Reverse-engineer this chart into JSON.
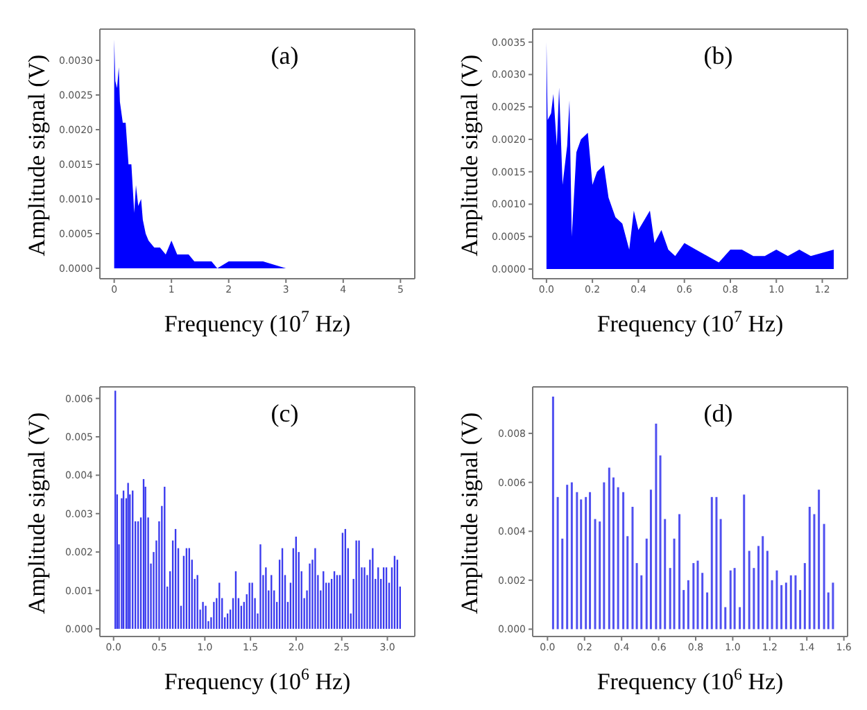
{
  "chart_data": [
    {
      "type": "area",
      "xlabel": "Frequency (10$^{7}$ Hz)",
      "ylabel": "Amplitude signal (V)",
      "annotations": [
        "(a)"
      ],
      "series": [
        {
          "color": "#0000ff",
          "x": [
            0,
            0.02,
            0.05,
            0.08,
            0.1,
            0.15,
            0.2,
            0.25,
            0.3,
            0.35,
            0.38,
            0.42,
            0.47,
            0.5,
            0.55,
            0.6,
            0.7,
            0.8,
            0.9,
            1.0,
            1.1,
            1.2,
            1.3,
            1.4,
            1.5,
            1.7,
            1.8,
            2.0,
            2.3,
            2.6,
            3.0,
            4.0,
            5.0
          ],
          "values": [
            0.0033,
            0.0027,
            0.0026,
            0.0029,
            0.0024,
            0.0021,
            0.0021,
            0.0015,
            0.0015,
            0.0008,
            0.0012,
            0.0009,
            0.001,
            0.0007,
            0.0005,
            0.0004,
            0.0003,
            0.0003,
            0.0002,
            0.0004,
            0.0002,
            0.0002,
            0.0002,
            0.0001,
            0.0001,
            0.0001,
            0.0,
            0.0001,
            0.0001,
            0.0001,
            0.0,
            0.0,
            0.0
          ]
        }
      ],
      "xlim": [
        -0.25,
        5.25
      ],
      "xticks": [
        0,
        1,
        2,
        3,
        4,
        5
      ],
      "ylim": [
        -0.00015,
        0.00345
      ],
      "yticks": [
        {
          "value": 0,
          "label": "0.0000"
        },
        {
          "value": 0.0005,
          "label": "0.0005"
        },
        {
          "value": 0.001,
          "label": "0.0010"
        },
        {
          "value": 0.0015,
          "label": "0.0015"
        },
        {
          "value": 0.002,
          "label": "0.0020"
        },
        {
          "value": 0.0025,
          "label": "0.0025"
        },
        {
          "value": 0.003,
          "label": "0.0030"
        }
      ]
    },
    {
      "type": "area",
      "xlabel": "Frequency (10$^{7}$ Hz)",
      "ylabel": "Amplitude signal (V)",
      "annotations": [
        "(b)"
      ],
      "series": [
        {
          "color": "#0000ff",
          "x": [
            0,
            0.005,
            0.02,
            0.03,
            0.045,
            0.055,
            0.07,
            0.09,
            0.1,
            0.11,
            0.13,
            0.15,
            0.18,
            0.2,
            0.22,
            0.25,
            0.27,
            0.3,
            0.33,
            0.36,
            0.38,
            0.4,
            0.45,
            0.47,
            0.5,
            0.53,
            0.56,
            0.6,
            0.65,
            0.7,
            0.75,
            0.8,
            0.85,
            0.9,
            0.95,
            1.0,
            1.05,
            1.1,
            1.15,
            1.25
          ],
          "values": [
            0.0035,
            0.0023,
            0.0024,
            0.0027,
            0.0019,
            0.0028,
            0.0013,
            0.0019,
            0.0026,
            0.0005,
            0.0018,
            0.002,
            0.0021,
            0.0013,
            0.0015,
            0.0016,
            0.0011,
            0.0008,
            0.0007,
            0.0003,
            0.0009,
            0.0006,
            0.0009,
            0.0004,
            0.0006,
            0.0003,
            0.0002,
            0.0004,
            0.0003,
            0.0002,
            0.0001,
            0.0003,
            0.0003,
            0.0002,
            0.0002,
            0.0003,
            0.0002,
            0.0003,
            0.0002,
            0.0003
          ]
        }
      ],
      "xlim": [
        -0.06,
        1.31
      ],
      "xticks": [
        {
          "value": 0,
          "label": "0.0"
        },
        {
          "value": 0.2,
          "label": "0.2"
        },
        {
          "value": 0.4,
          "label": "0.4"
        },
        {
          "value": 0.6,
          "label": "0.6"
        },
        {
          "value": 0.8,
          "label": "0.8"
        },
        {
          "value": 1.0,
          "label": "1.0"
        },
        {
          "value": 1.2,
          "label": "1.2"
        }
      ],
      "ylim": [
        -0.00015,
        0.0037
      ],
      "yticks": [
        {
          "value": 0,
          "label": "0.0000"
        },
        {
          "value": 0.0005,
          "label": "0.0005"
        },
        {
          "value": 0.001,
          "label": "0.0010"
        },
        {
          "value": 0.0015,
          "label": "0.0015"
        },
        {
          "value": 0.002,
          "label": "0.0020"
        },
        {
          "value": 0.0025,
          "label": "0.0025"
        },
        {
          "value": 0.003,
          "label": "0.0030"
        },
        {
          "value": 0.0035,
          "label": "0.0035"
        }
      ]
    },
    {
      "type": "bar",
      "xlabel": "Frequency (10$^{6}$ Hz)",
      "ylabel": "Amplitude signal (V)",
      "annotations": [
        "(c)"
      ],
      "series": [
        {
          "color": "#3a3aee",
          "x": [
            0.02,
            0.04,
            0.06,
            0.09,
            0.11,
            0.14,
            0.16,
            0.18,
            0.21,
            0.24,
            0.27,
            0.3,
            0.33,
            0.35,
            0.38,
            0.41,
            0.44,
            0.47,
            0.5,
            0.53,
            0.56,
            0.59,
            0.62,
            0.65,
            0.68,
            0.71,
            0.74,
            0.77,
            0.8,
            0.83,
            0.86,
            0.89,
            0.92,
            0.95,
            0.98,
            1.01,
            1.04,
            1.07,
            1.1,
            1.13,
            1.16,
            1.19,
            1.22,
            1.25,
            1.28,
            1.31,
            1.34,
            1.37,
            1.4,
            1.43,
            1.46,
            1.49,
            1.52,
            1.55,
            1.58,
            1.61,
            1.64,
            1.67,
            1.7,
            1.73,
            1.76,
            1.79,
            1.82,
            1.85,
            1.88,
            1.91,
            1.94,
            1.97,
            2.0,
            2.03,
            2.06,
            2.09,
            2.12,
            2.15,
            2.18,
            2.21,
            2.24,
            2.27,
            2.3,
            2.33,
            2.36,
            2.39,
            2.42,
            2.45,
            2.48,
            2.51,
            2.54,
            2.57,
            2.6,
            2.63,
            2.66,
            2.69,
            2.72,
            2.75,
            2.78,
            2.81,
            2.84,
            2.87,
            2.9,
            2.93,
            2.96,
            2.99,
            3.02,
            3.05,
            3.08,
            3.11,
            3.14
          ],
          "values": [
            0.0062,
            0.0035,
            0.0022,
            0.0034,
            0.0036,
            0.0034,
            0.0038,
            0.0035,
            0.0036,
            0.0028,
            0.0028,
            0.0029,
            0.0039,
            0.0037,
            0.0029,
            0.0017,
            0.002,
            0.0023,
            0.0028,
            0.0032,
            0.0037,
            0.0011,
            0.0015,
            0.0023,
            0.0026,
            0.0021,
            0.0006,
            0.0019,
            0.0021,
            0.0021,
            0.0018,
            0.0013,
            0.0014,
            0.0005,
            0.0007,
            0.0006,
            0.0002,
            0.0003,
            0.0007,
            0.0008,
            0.0012,
            0.0008,
            0.0003,
            0.0004,
            0.0005,
            0.0008,
            0.0015,
            0.0008,
            0.0006,
            0.0007,
            0.0009,
            0.0012,
            0.0012,
            0.0008,
            0.0004,
            0.0022,
            0.0014,
            0.0016,
            0.001,
            0.0014,
            0.001,
            0.0007,
            0.0018,
            0.0021,
            0.0014,
            0.0007,
            0.0012,
            0.0021,
            0.0024,
            0.002,
            0.0015,
            0.0008,
            0.001,
            0.0017,
            0.0018,
            0.0021,
            0.0014,
            0.001,
            0.0015,
            0.0012,
            0.0012,
            0.0013,
            0.0015,
            0.0014,
            0.0014,
            0.0025,
            0.0026,
            0.0021,
            0.0004,
            0.0013,
            0.0023,
            0.0023,
            0.0016,
            0.0016,
            0.0014,
            0.0018,
            0.0021,
            0.0013,
            0.0016,
            0.0013,
            0.0016,
            0.0016,
            0.0012,
            0.0016,
            0.0019,
            0.0018,
            0.0011
          ]
        }
      ],
      "xlim": [
        -0.15,
        3.3
      ],
      "xticks": [
        {
          "value": 0,
          "label": "0.0"
        },
        {
          "value": 0.5,
          "label": "0.5"
        },
        {
          "value": 1.0,
          "label": "1.0"
        },
        {
          "value": 1.5,
          "label": "1.5"
        },
        {
          "value": 2.0,
          "label": "2.0"
        },
        {
          "value": 2.5,
          "label": "2.5"
        },
        {
          "value": 3.0,
          "label": "3.0"
        }
      ],
      "ylim": [
        -0.0002,
        0.0063
      ],
      "yticks": [
        {
          "value": 0,
          "label": "0.000"
        },
        {
          "value": 0.001,
          "label": "0.001"
        },
        {
          "value": 0.002,
          "label": "0.002"
        },
        {
          "value": 0.003,
          "label": "0.003"
        },
        {
          "value": 0.004,
          "label": "0.004"
        },
        {
          "value": 0.005,
          "label": "0.005"
        },
        {
          "value": 0.006,
          "label": "0.006"
        }
      ]
    },
    {
      "type": "bar",
      "xlabel": "Frequency (10$^{6}$ Hz)",
      "ylabel": "Amplitude signal (V)",
      "annotations": [
        "(d)"
      ],
      "series": [
        {
          "color": "#5050f0",
          "x": [
            0.028,
            0.053,
            0.078,
            0.104,
            0.129,
            0.157,
            0.179,
            0.205,
            0.227,
            0.255,
            0.28,
            0.303,
            0.331,
            0.354,
            0.379,
            0.407,
            0.43,
            0.457,
            0.48,
            0.505,
            0.533,
            0.556,
            0.584,
            0.607,
            0.632,
            0.66,
            0.682,
            0.71,
            0.733,
            0.758,
            0.786,
            0.809,
            0.834,
            0.86,
            0.885,
            0.91,
            0.933,
            0.958,
            0.986,
            1.008,
            1.036,
            1.059,
            1.087,
            1.112,
            1.137,
            1.16,
            1.185,
            1.21,
            1.236,
            1.261,
            1.286,
            1.312,
            1.337,
            1.362,
            1.387,
            1.413,
            1.438,
            1.463,
            1.491,
            1.514,
            1.539
          ],
          "values": [
            0.0095,
            0.0054,
            0.0037,
            0.0059,
            0.006,
            0.0056,
            0.0053,
            0.0054,
            0.0056,
            0.0045,
            0.0044,
            0.006,
            0.0066,
            0.0062,
            0.0058,
            0.0056,
            0.0038,
            0.005,
            0.0027,
            0.0022,
            0.0037,
            0.0057,
            0.0084,
            0.0071,
            0.0045,
            0.0025,
            0.0037,
            0.0047,
            0.0016,
            0.002,
            0.0027,
            0.0028,
            0.0023,
            0.0015,
            0.0054,
            0.0054,
            0.0045,
            0.0009,
            0.0024,
            0.0025,
            0.0009,
            0.0055,
            0.0032,
            0.0025,
            0.0034,
            0.0038,
            0.0032,
            0.002,
            0.0024,
            0.0018,
            0.0019,
            0.0022,
            0.0022,
            0.0016,
            0.0027,
            0.005,
            0.0047,
            0.0057,
            0.0043,
            0.0015,
            0.0019
          ]
        }
      ],
      "xlim": [
        -0.08,
        1.62
      ],
      "xticks": [
        {
          "value": 0,
          "label": "0.0"
        },
        {
          "value": 0.2,
          "label": "0.2"
        },
        {
          "value": 0.4,
          "label": "0.4"
        },
        {
          "value": 0.6,
          "label": "0.6"
        },
        {
          "value": 0.8,
          "label": "0.8"
        },
        {
          "value": 1.0,
          "label": "1.0"
        },
        {
          "value": 1.2,
          "label": "1.2"
        },
        {
          "value": 1.4,
          "label": "1.4"
        },
        {
          "value": 1.6,
          "label": "1.6"
        }
      ],
      "ylim": [
        -0.0003,
        0.0099
      ],
      "yticks": [
        {
          "value": 0,
          "label": "0.000"
        },
        {
          "value": 0.002,
          "label": "0.002"
        },
        {
          "value": 0.004,
          "label": "0.004"
        },
        {
          "value": 0.006,
          "label": "0.006"
        },
        {
          "value": 0.008,
          "label": "0.008"
        }
      ]
    }
  ]
}
